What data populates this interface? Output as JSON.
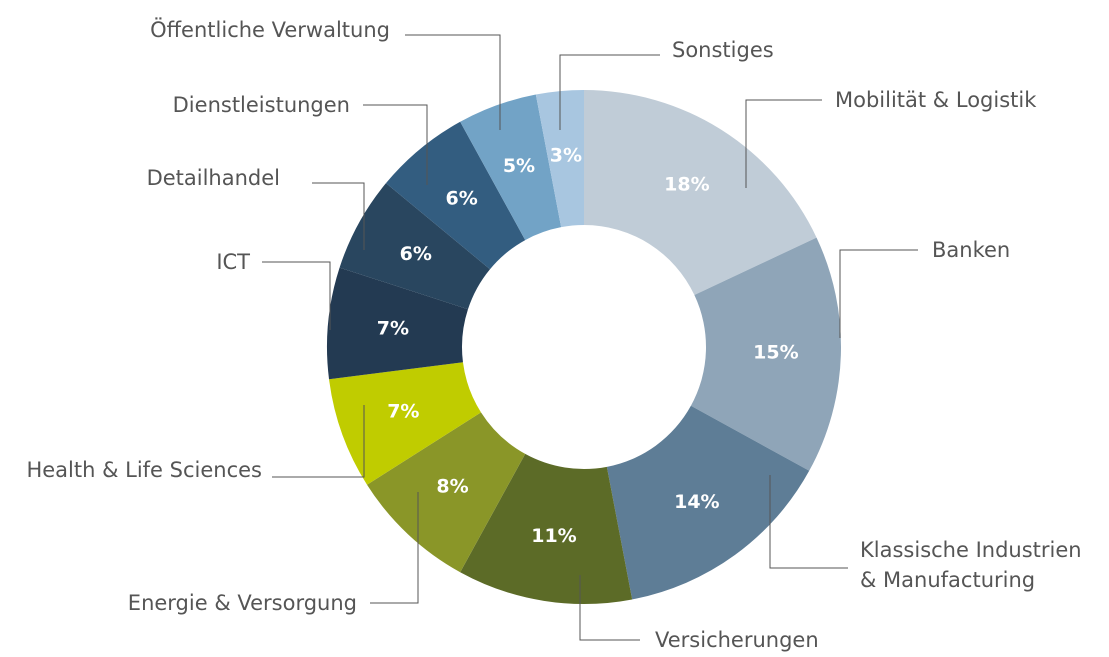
{
  "chart_data": {
    "type": "donut",
    "categories": [
      "Mobilität & Logistik",
      "Banken",
      "Klassische Industrien\n& Manufacturing",
      "Versicherungen",
      "Energie & Versorgung",
      "Health & Life Sciences",
      "ICT",
      "Detailhandel",
      "Dienstleistungen",
      "Öffentliche Verwaltung",
      "Sonstiges"
    ],
    "values": [
      18,
      15,
      14,
      11,
      8,
      7,
      7,
      6,
      6,
      5,
      3
    ],
    "value_labels": [
      "18%",
      "15%",
      "14%",
      "11%",
      "8%",
      "7%",
      "7%",
      "6%",
      "6%",
      "5%",
      "3%"
    ],
    "colors": [
      "#c0ccd7",
      "#8fa5b8",
      "#5e7d96",
      "#5c6b27",
      "#8a9628",
      "#c0cc00",
      "#233a52",
      "#29465f",
      "#335d80",
      "#72a3c6",
      "#a8c6e0"
    ]
  }
}
